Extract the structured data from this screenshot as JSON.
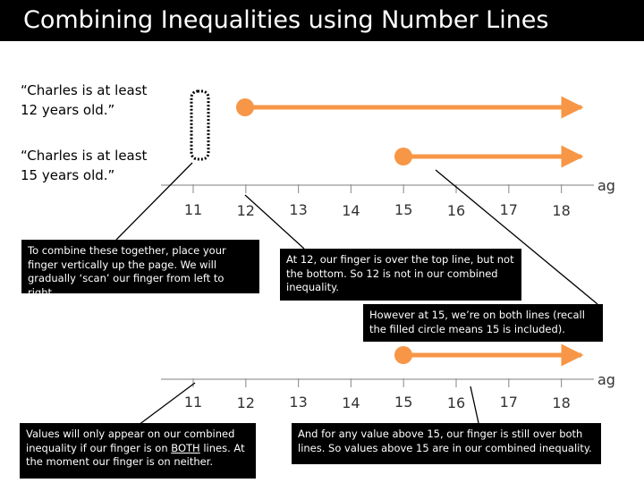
{
  "title": "Combining Inequalities using Number Lines",
  "statements": [
    {
      "lines": [
        "“Charles is at least",
        "12 years old.”"
      ]
    },
    {
      "lines": [
        "“Charles is at least",
        "15 years old.”"
      ]
    }
  ],
  "number_line": {
    "ticks": [
      "11",
      "12",
      "13",
      "14",
      "15",
      "16",
      "17",
      "18"
    ],
    "axis_label": "ag"
  },
  "inequalities": {
    "line_a": {
      "start": 12,
      "closed": true
    },
    "line_b": {
      "start": 15,
      "closed": true
    },
    "combined": {
      "start": 15,
      "closed": true
    }
  },
  "boxes": {
    "box1": "To combine these together, place your finger vertically up the page. We will gradually ‘scan’ our finger from left to right.",
    "box2": "At 12, our finger is over the top line, but not the bottom. So 12 is not in our combined inequality.",
    "box3": "However at 15, we’re on both lines (recall the filled circle means 15 is included).",
    "box4_pre": "Values will only appear on our combined inequality if our finger is on ",
    "box4_emph": "BOTH",
    "box4_post": " lines. At the moment our finger is on neither.",
    "box5": "And for any value above 15, our finger is still over both lines. So values above 15 are in our combined inequality."
  },
  "colors": {
    "accent": "#F79646",
    "background": "#FFFFFF",
    "title_bar": "#000000",
    "box": "#000000"
  }
}
